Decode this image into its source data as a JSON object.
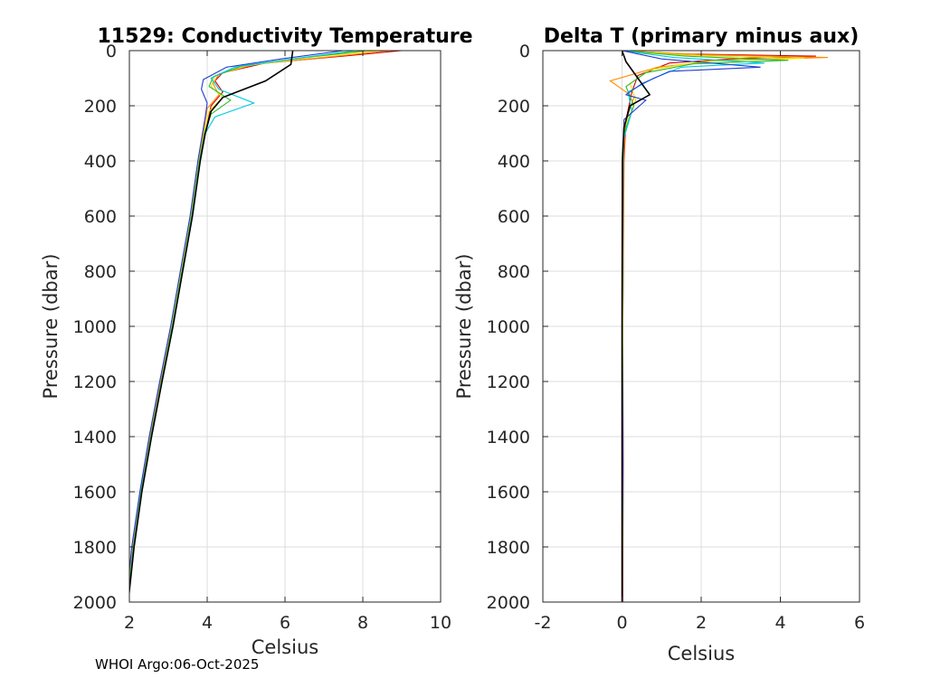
{
  "footer": "WHOI Argo:06-Oct-2025",
  "chart_data": [
    {
      "type": "line",
      "title": "11529: Conductivity Temperature",
      "xlabel": "Celsius",
      "ylabel": "Pressure (dbar)",
      "xlim": [
        2,
        10
      ],
      "ylim": [
        0,
        2000
      ],
      "y_reversed": true,
      "grid": true,
      "xticks": [
        2,
        4,
        6,
        8,
        10
      ],
      "yticks": [
        0,
        200,
        400,
        600,
        800,
        1000,
        1200,
        1400,
        1600,
        1800,
        2000
      ],
      "series": [
        {
          "name": "profile-red",
          "color": "#d00000",
          "points": [
            [
              9.0,
              0
            ],
            [
              7.5,
              20
            ],
            [
              5.5,
              45
            ],
            [
              4.4,
              80
            ],
            [
              4.2,
              110
            ],
            [
              4.4,
              150
            ],
            [
              4.1,
              200
            ],
            [
              3.95,
              300
            ],
            [
              3.8,
              400
            ],
            [
              3.6,
              600
            ],
            [
              3.35,
              800
            ],
            [
              3.1,
              1000
            ],
            [
              2.8,
              1200
            ],
            [
              2.55,
              1400
            ],
            [
              2.3,
              1600
            ],
            [
              2.1,
              1800
            ],
            [
              1.95,
              2000
            ]
          ]
        },
        {
          "name": "profile-orange",
          "color": "#ff8c00",
          "points": [
            [
              8.7,
              0
            ],
            [
              7.0,
              25
            ],
            [
              5.2,
              50
            ],
            [
              4.3,
              85
            ],
            [
              4.15,
              120
            ],
            [
              4.3,
              160
            ],
            [
              4.0,
              210
            ],
            [
              3.9,
              300
            ],
            [
              3.78,
              400
            ],
            [
              3.58,
              600
            ],
            [
              3.33,
              800
            ],
            [
              3.08,
              1000
            ],
            [
              2.8,
              1200
            ],
            [
              2.53,
              1400
            ],
            [
              2.28,
              1600
            ],
            [
              2.08,
              1800
            ],
            [
              1.93,
              2000
            ]
          ]
        },
        {
          "name": "profile-yellow",
          "color": "#e6e600",
          "points": [
            [
              8.4,
              0
            ],
            [
              6.8,
              22
            ],
            [
              5.0,
              55
            ],
            [
              4.2,
              90
            ],
            [
              4.1,
              130
            ],
            [
              4.4,
              170
            ],
            [
              4.05,
              220
            ],
            [
              3.92,
              300
            ],
            [
              3.79,
              400
            ],
            [
              3.59,
              600
            ],
            [
              3.34,
              800
            ],
            [
              3.09,
              1000
            ],
            [
              2.82,
              1200
            ],
            [
              2.55,
              1400
            ],
            [
              2.3,
              1600
            ],
            [
              2.1,
              1800
            ],
            [
              1.95,
              2000
            ]
          ]
        },
        {
          "name": "profile-green",
          "color": "#2db82d",
          "points": [
            [
              8.1,
              0
            ],
            [
              6.5,
              25
            ],
            [
              4.9,
              55
            ],
            [
              4.15,
              95
            ],
            [
              4.05,
              130
            ],
            [
              4.6,
              180
            ],
            [
              4.1,
              230
            ],
            [
              3.93,
              300
            ],
            [
              3.8,
              400
            ],
            [
              3.6,
              600
            ],
            [
              3.35,
              800
            ],
            [
              3.1,
              1000
            ],
            [
              2.82,
              1200
            ],
            [
              2.55,
              1400
            ],
            [
              2.3,
              1600
            ],
            [
              2.1,
              1800
            ],
            [
              1.95,
              2000
            ]
          ]
        },
        {
          "name": "profile-cyan",
          "color": "#00c8e0",
          "points": [
            [
              7.8,
              0
            ],
            [
              6.2,
              30
            ],
            [
              4.7,
              60
            ],
            [
              4.1,
              100
            ],
            [
              4.3,
              140
            ],
            [
              5.2,
              190
            ],
            [
              4.2,
              240
            ],
            [
              3.95,
              300
            ],
            [
              3.81,
              400
            ],
            [
              3.61,
              600
            ],
            [
              3.36,
              800
            ],
            [
              3.11,
              1000
            ],
            [
              2.83,
              1200
            ],
            [
              2.56,
              1400
            ],
            [
              2.31,
              1600
            ],
            [
              2.11,
              1800
            ],
            [
              1.96,
              2000
            ]
          ]
        },
        {
          "name": "profile-blue",
          "color": "#1f3bd6",
          "points": [
            [
              7.5,
              0
            ],
            [
              5.9,
              30
            ],
            [
              4.5,
              60
            ],
            [
              3.9,
              105
            ],
            [
              3.85,
              140
            ],
            [
              4.0,
              190
            ],
            [
              3.95,
              240
            ],
            [
              3.88,
              300
            ],
            [
              3.76,
              400
            ],
            [
              3.56,
              600
            ],
            [
              3.31,
              800
            ],
            [
              3.06,
              1000
            ],
            [
              2.78,
              1200
            ],
            [
              2.51,
              1400
            ],
            [
              2.27,
              1600
            ],
            [
              2.06,
              1800
            ],
            [
              1.92,
              2000
            ]
          ]
        },
        {
          "name": "profile-black",
          "color": "#000000",
          "points": [
            [
              6.2,
              0
            ],
            [
              6.15,
              50
            ],
            [
              5.5,
              110
            ],
            [
              4.4,
              170
            ],
            [
              4.1,
              220
            ],
            [
              3.95,
              300
            ],
            [
              3.82,
              400
            ],
            [
              3.62,
              600
            ],
            [
              3.37,
              800
            ],
            [
              3.12,
              1000
            ],
            [
              2.84,
              1200
            ],
            [
              2.57,
              1400
            ],
            [
              2.32,
              1600
            ],
            [
              2.12,
              1800
            ],
            [
              1.97,
              2000
            ]
          ]
        }
      ]
    },
    {
      "type": "line",
      "title": "Delta T (primary minus aux)",
      "xlabel": "Celsius",
      "ylabel": "Pressure (dbar)",
      "xlim": [
        -2,
        6
      ],
      "ylim": [
        0,
        2000
      ],
      "y_reversed": true,
      "grid": true,
      "xticks": [
        -2,
        0,
        2,
        4,
        6
      ],
      "yticks": [
        0,
        200,
        400,
        600,
        800,
        1000,
        1200,
        1400,
        1600,
        1800,
        2000
      ],
      "series": [
        {
          "name": "delta-red",
          "color": "#d00000",
          "points": [
            [
              0,
              0
            ],
            [
              1.5,
              12
            ],
            [
              4.9,
              20
            ],
            [
              3.0,
              28
            ],
            [
              1.2,
              45
            ],
            [
              0.4,
              90
            ],
            [
              0.25,
              150
            ],
            [
              0.1,
              250
            ],
            [
              0.05,
              400
            ],
            [
              0.02,
              1000
            ],
            [
              0.03,
              1500
            ],
            [
              0.02,
              2000
            ]
          ]
        },
        {
          "name": "delta-orange",
          "color": "#ff8c00",
          "points": [
            [
              0,
              0
            ],
            [
              2.0,
              15
            ],
            [
              5.2,
              25
            ],
            [
              2.5,
              35
            ],
            [
              0.9,
              60
            ],
            [
              -0.3,
              110
            ],
            [
              0.3,
              170
            ],
            [
              0.08,
              260
            ],
            [
              0.04,
              400
            ],
            [
              0.02,
              1000
            ],
            [
              0.02,
              1500
            ],
            [
              0.01,
              2000
            ]
          ]
        },
        {
          "name": "delta-yellow",
          "color": "#e6e600",
          "points": [
            [
              0,
              0
            ],
            [
              1.8,
              18
            ],
            [
              4.6,
              28
            ],
            [
              2.0,
              40
            ],
            [
              0.7,
              70
            ],
            [
              0.2,
              120
            ],
            [
              0.35,
              180
            ],
            [
              0.06,
              280
            ],
            [
              0.03,
              400
            ],
            [
              0.02,
              1000
            ],
            [
              0.02,
              1500
            ],
            [
              0.01,
              2000
            ]
          ]
        },
        {
          "name": "delta-green",
          "color": "#2db82d",
          "points": [
            [
              0,
              0
            ],
            [
              1.6,
              20
            ],
            [
              4.2,
              35
            ],
            [
              1.8,
              48
            ],
            [
              0.6,
              80
            ],
            [
              0.1,
              130
            ],
            [
              0.3,
              200
            ],
            [
              0.05,
              300
            ],
            [
              0.03,
              400
            ],
            [
              0.01,
              1000
            ],
            [
              0.02,
              1500
            ],
            [
              0.01,
              2000
            ]
          ]
        },
        {
          "name": "delta-cyan",
          "color": "#00c8e0",
          "points": [
            [
              0,
              0
            ],
            [
              1.3,
              25
            ],
            [
              3.6,
              45
            ],
            [
              1.5,
              60
            ],
            [
              0.8,
              100
            ],
            [
              0.15,
              150
            ],
            [
              0.25,
              220
            ],
            [
              0.04,
              320
            ],
            [
              0.02,
              400
            ],
            [
              0.01,
              1000
            ],
            [
              0.01,
              1500
            ],
            [
              0.01,
              2000
            ]
          ]
        },
        {
          "name": "delta-blue",
          "color": "#1f3bd6",
          "points": [
            [
              0,
              0
            ],
            [
              1.0,
              30
            ],
            [
              3.5,
              60
            ],
            [
              1.2,
              75
            ],
            [
              0.5,
              120
            ],
            [
              0.1,
              160
            ],
            [
              0.6,
              180
            ],
            [
              0.05,
              250
            ],
            [
              0.02,
              400
            ],
            [
              0.01,
              1000
            ],
            [
              0.02,
              1500
            ],
            [
              0.0,
              2000
            ]
          ]
        },
        {
          "name": "delta-black",
          "color": "#000000",
          "points": [
            [
              0,
              0
            ],
            [
              0.1,
              40
            ],
            [
              0.5,
              120
            ],
            [
              0.7,
              160
            ],
            [
              0.2,
              200
            ],
            [
              0.05,
              280
            ],
            [
              0.01,
              400
            ],
            [
              0.0,
              1000
            ],
            [
              0.0,
              1500
            ],
            [
              0.0,
              2000
            ]
          ]
        }
      ]
    }
  ]
}
